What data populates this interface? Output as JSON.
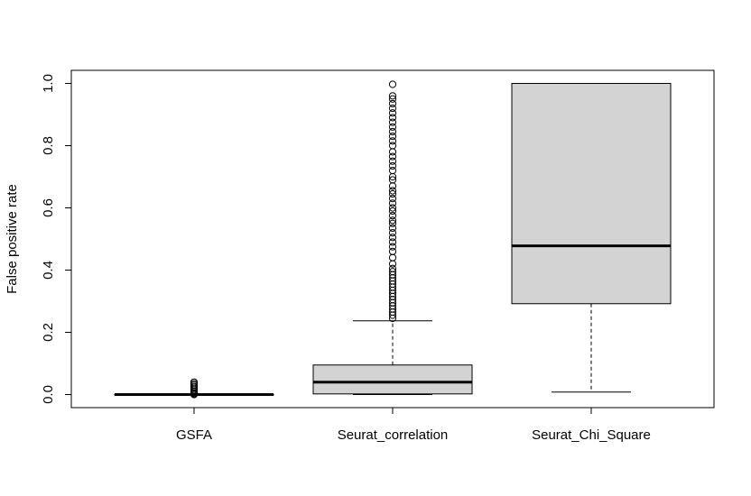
{
  "chart_data": {
    "type": "boxplot",
    "title": "",
    "xlabel": "",
    "ylabel": "False positive rate",
    "ylim": [
      -0.04,
      1.04
    ],
    "yticks": [
      "0.0",
      "0.2",
      "0.4",
      "0.6",
      "0.8",
      "1.0"
    ],
    "grid": false,
    "box_fill": "#d3d3d3",
    "line_color": "#000000",
    "categories": [
      "GSFA",
      "Seurat_correlation",
      "Seurat_Chi_Square"
    ],
    "boxes": [
      {
        "name": "GSFA",
        "whisker_low": 0.0,
        "q1": 0.0,
        "median": 0.0,
        "q3": 0.0,
        "whisker_high": 0.0,
        "outliers": [
          0.005,
          0.01,
          0.015,
          0.02,
          0.025,
          0.03,
          0.035,
          0.04,
          0.0,
          0.002
        ]
      },
      {
        "name": "Seurat_correlation",
        "whisker_low": 0.0,
        "q1": 0.002,
        "median": 0.04,
        "q3": 0.095,
        "whisker_high": 0.237,
        "outliers": [
          0.245,
          0.255,
          0.265,
          0.275,
          0.285,
          0.295,
          0.305,
          0.315,
          0.325,
          0.335,
          0.345,
          0.355,
          0.365,
          0.375,
          0.385,
          0.395,
          0.405,
          0.42,
          0.44,
          0.46,
          0.475,
          0.49,
          0.505,
          0.52,
          0.535,
          0.55,
          0.56,
          0.575,
          0.59,
          0.6,
          0.615,
          0.63,
          0.645,
          0.655,
          0.67,
          0.69,
          0.7,
          0.72,
          0.735,
          0.75,
          0.765,
          0.78,
          0.8,
          0.815,
          0.83,
          0.845,
          0.86,
          0.875,
          0.89,
          0.905,
          0.92,
          0.935,
          0.95,
          0.96,
          0.997
        ]
      },
      {
        "name": "Seurat_Chi_Square",
        "whisker_low": 0.008,
        "q1": 0.292,
        "median": 0.478,
        "q3": 1.0,
        "whisker_high": 1.0,
        "outliers": []
      }
    ]
  }
}
